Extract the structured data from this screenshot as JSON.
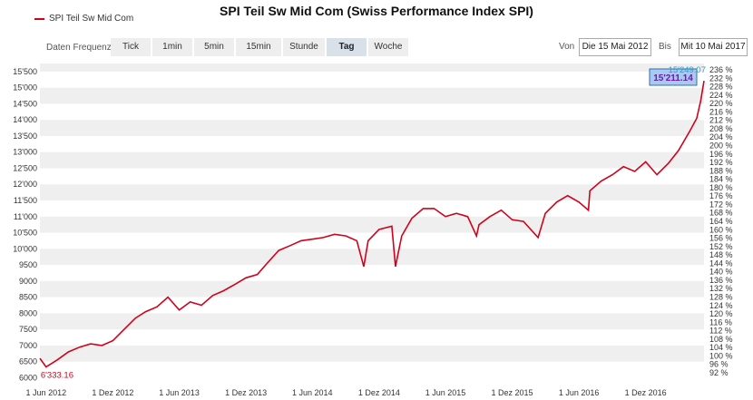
{
  "header": {
    "title": "SPI Teil Sw Mid Com (Swiss Performance Index SPI)",
    "legend_label": "SPI Teil Sw Mid Com",
    "series_color": "#d0021b"
  },
  "controls": {
    "frequency_label": "Daten Frequenz",
    "frequencies": [
      "Tick",
      "1min",
      "5min",
      "15min",
      "Stunde",
      "Tag",
      "Woche"
    ],
    "active_frequency": "Tag",
    "from_label": "Von",
    "from_value": "Die 15 Mai 2012",
    "to_label": "Bis",
    "to_value": "Mit 10 Mai 2017"
  },
  "chart_data": {
    "type": "line",
    "title": "SPI Teil Sw Mid Com (Swiss Performance Index SPI)",
    "series": [
      {
        "name": "SPI Teil Sw Mid Com",
        "color": "#d0021b",
        "x": [
          "2012-05-15",
          "2012-06-01",
          "2012-07-01",
          "2012-08-01",
          "2012-09-01",
          "2012-10-01",
          "2012-11-01",
          "2012-12-01",
          "2013-01-01",
          "2013-02-01",
          "2013-03-01",
          "2013-04-01",
          "2013-05-01",
          "2013-06-01",
          "2013-07-01",
          "2013-08-01",
          "2013-09-01",
          "2013-10-01",
          "2013-11-01",
          "2013-12-01",
          "2014-01-01",
          "2014-02-01",
          "2014-03-01",
          "2014-04-01",
          "2014-05-01",
          "2014-06-01",
          "2014-07-01",
          "2014-08-01",
          "2014-09-01",
          "2014-10-01",
          "2014-10-20",
          "2014-11-01",
          "2014-12-01",
          "2015-01-05",
          "2015-01-15",
          "2015-02-01",
          "2015-03-01",
          "2015-04-01",
          "2015-05-01",
          "2015-06-01",
          "2015-07-01",
          "2015-08-01",
          "2015-08-25",
          "2015-09-01",
          "2015-10-01",
          "2015-11-01",
          "2015-12-01",
          "2016-01-01",
          "2016-02-10",
          "2016-03-01",
          "2016-04-01",
          "2016-05-01",
          "2016-06-01",
          "2016-06-27",
          "2016-07-01",
          "2016-08-01",
          "2016-09-01",
          "2016-10-01",
          "2016-11-01",
          "2016-12-01",
          "2017-01-01",
          "2017-02-01",
          "2017-03-01",
          "2017-04-01",
          "2017-04-20",
          "2017-05-01",
          "2017-05-10"
        ],
        "values": [
          6600,
          6333.16,
          6550,
          6800,
          6950,
          7050,
          7000,
          7150,
          7500,
          7850,
          8050,
          8200,
          8500,
          8100,
          8350,
          8250,
          8550,
          8700,
          8900,
          9100,
          9200,
          9600,
          9950,
          10100,
          10250,
          10300,
          10350,
          10450,
          10400,
          10250,
          9450,
          10250,
          10600,
          10700,
          9450,
          10400,
          10950,
          11250,
          11250,
          11000,
          11100,
          11000,
          10400,
          10750,
          11000,
          11200,
          10900,
          10850,
          10350,
          11100,
          11450,
          11650,
          11450,
          11200,
          11800,
          12100,
          12300,
          12550,
          12400,
          12700,
          12300,
          12650,
          13050,
          13650,
          14050,
          14600,
          15211.14
        ],
        "last_value_label": "15'211.14",
        "high_value_label": "15'249.07",
        "low_value_label": "6'333.16"
      }
    ],
    "y_ticks": [
      6000,
      6500,
      7000,
      7500,
      8000,
      8500,
      9000,
      9500,
      10000,
      10500,
      11000,
      11500,
      12000,
      12500,
      13000,
      13500,
      14000,
      14500,
      15000,
      15500
    ],
    "y_tick_labels": [
      "6000",
      "6500",
      "7000",
      "7500",
      "8000",
      "8500",
      "9000",
      "9500",
      "10'000",
      "10'500",
      "11'000",
      "11'500",
      "12'000",
      "12'500",
      "13'000",
      "13'500",
      "14'000",
      "14'500",
      "15'000",
      "15'500"
    ],
    "ylim": [
      5900,
      15750
    ],
    "right_axis_labels": [
      "92 %",
      "96 %",
      "100 %",
      "104 %",
      "108 %",
      "112 %",
      "116 %",
      "120 %",
      "124 %",
      "128 %",
      "132 %",
      "136 %",
      "140 %",
      "144 %",
      "148 %",
      "152 %",
      "156 %",
      "160 %",
      "164 %",
      "168 %",
      "172 %",
      "176 %",
      "180 %",
      "184 %",
      "188 %",
      "192 %",
      "196 %",
      "200 %",
      "204 %",
      "208 %",
      "212 %",
      "216 %",
      "220 %",
      "224 %",
      "228 %",
      "232 %",
      "236 %"
    ],
    "right_axis_range": [
      92,
      236
    ],
    "x_tick_dates": [
      "2012-06-01",
      "2012-12-01",
      "2013-06-01",
      "2013-12-01",
      "2014-06-01",
      "2014-12-01",
      "2015-06-01",
      "2015-12-01",
      "2016-06-01",
      "2016-12-01"
    ],
    "x_tick_labels": [
      "1 Jun 2012",
      "1 Dez 2012",
      "1 Jun 2013",
      "1 Dez 2013",
      "1 Jun 2014",
      "1 Dez 2014",
      "1 Jun 2015",
      "1 Dez 2015",
      "1 Jun 2016",
      "1 Dez 2016"
    ],
    "xlim": [
      "2012-05-15",
      "2017-05-10"
    ],
    "grid": "alternating horizontal bands"
  }
}
